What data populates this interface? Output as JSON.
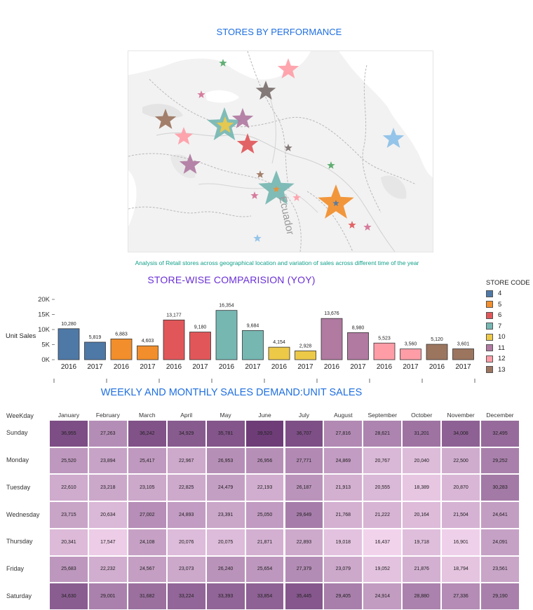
{
  "map": {
    "title": "STORES BY PERFORMANCE",
    "subtitle": "Analysis  of Retail stores across geographical location and variation of sales across different time of the year",
    "place_label": "Ecuador",
    "star_colors": [
      "#55a868",
      "#ff9da7",
      "#79706e",
      "#d37295",
      "#9c755f",
      "#76b7b2",
      "#edc948",
      "#b07aa1",
      "#e15759",
      "#8cc0e8",
      "#f28e2b",
      "#4e79a7"
    ]
  },
  "bar_chart": {
    "title": "STORE-WISE COMPARISION (YOY)",
    "ylabel": "Unit Sales",
    "yticks": [
      "20K",
      "15K",
      "10K",
      "5K",
      "0K"
    ],
    "legend_title": "STORE CODE",
    "legend": [
      {
        "code": "4",
        "color": "#4e79a7"
      },
      {
        "code": "5",
        "color": "#f28e2b"
      },
      {
        "code": "6",
        "color": "#e15759"
      },
      {
        "code": "7",
        "color": "#76b7b2"
      },
      {
        "code": "10",
        "color": "#edc948"
      },
      {
        "code": "11",
        "color": "#b07aa1"
      },
      {
        "code": "12",
        "color": "#ff9da7"
      },
      {
        "code": "13",
        "color": "#9c755f"
      }
    ]
  },
  "heatmap": {
    "title": "WEEKLY AND MONTHLY SALES DEMAND:UNIT SALES",
    "row_header": "WeeKday"
  },
  "chart_data": [
    {
      "type": "bar",
      "title": "STORE-WISE COMPARISION (YOY)",
      "xlabel": "",
      "ylabel": "Unit Sales",
      "ylim": [
        0,
        20000
      ],
      "categories": [
        "2016",
        "2017",
        "2016",
        "2017",
        "2016",
        "2017",
        "2016",
        "2017",
        "2016",
        "2017",
        "2016",
        "2017",
        "2016",
        "2017",
        "2016",
        "2017"
      ],
      "stores": [
        "4",
        "4",
        "5",
        "5",
        "6",
        "6",
        "7",
        "7",
        "10",
        "10",
        "11",
        "11",
        "12",
        "12",
        "13",
        "13"
      ],
      "values": [
        10280,
        5819,
        6883,
        4603,
        13177,
        9180,
        16354,
        9684,
        4154,
        2928,
        13676,
        8980,
        5523,
        3560,
        5120,
        3601
      ],
      "labels": [
        "10,280",
        "5,819",
        "6,883",
        "4,603",
        "13,177",
        "9,180",
        "16,354",
        "9,684",
        "4,154",
        "2,928",
        "13,676",
        "8,980",
        "5,523",
        "3,560",
        "5,120",
        "3,601"
      ]
    },
    {
      "type": "heatmap",
      "title": "WEEKLY AND MONTHLY SALES DEMAND:UNIT SALES",
      "columns": [
        "January",
        "February",
        "March",
        "April",
        "May",
        "June",
        "July",
        "August",
        "September",
        "October",
        "November",
        "December"
      ],
      "rows": [
        "Sunday",
        "Monday",
        "Tuesday",
        "Wednesday",
        "Thursday",
        "Friday",
        "Saturday"
      ],
      "values": [
        [
          36955,
          27263,
          36242,
          34929,
          35781,
          39520,
          36707,
          27816,
          28621,
          31201,
          34008,
          32495
        ],
        [
          25520,
          23894,
          25417,
          22967,
          26953,
          26956,
          27771,
          24869,
          20767,
          20040,
          22500,
          29252
        ],
        [
          22610,
          23218,
          23105,
          22825,
          24479,
          22193,
          26187,
          21913,
          20555,
          18389,
          20870,
          30283
        ],
        [
          23715,
          20634,
          27002,
          24893,
          23391,
          25050,
          29649,
          21768,
          21222,
          20164,
          21504,
          24641
        ],
        [
          20341,
          17547,
          24108,
          20076,
          20075,
          21871,
          22893,
          19018,
          16437,
          19718,
          16901,
          24091
        ],
        [
          25683,
          22232,
          24567,
          23073,
          26240,
          25654,
          27379,
          23079,
          19052,
          21876,
          18794,
          23561
        ],
        [
          34630,
          29001,
          31682,
          33224,
          33393,
          33854,
          35445,
          29405,
          24914,
          28880,
          27336,
          29190
        ]
      ],
      "labels": [
        [
          "36,955",
          "27,263",
          "36,242",
          "34,929",
          "35,781",
          "39,520",
          "36,707",
          "27,816",
          "28,621",
          "31,201",
          "34,008",
          "32,495"
        ],
        [
          "25,520",
          "23,894",
          "25,417",
          "22,967",
          "26,953",
          "26,956",
          "27,771",
          "24,869",
          "20,767",
          "20,040",
          "22,500",
          "29,252"
        ],
        [
          "22,610",
          "23,218",
          "23,105",
          "22,825",
          "24,479",
          "22,193",
          "26,187",
          "21,913",
          "20,555",
          "18,389",
          "20,870",
          "30,283"
        ],
        [
          "23,715",
          "20,634",
          "27,002",
          "24,893",
          "23,391",
          "25,050",
          "29,649",
          "21,768",
          "21,222",
          "20,164",
          "21,504",
          "24,641"
        ],
        [
          "20,341",
          "17,547",
          "24,108",
          "20,076",
          "20,075",
          "21,871",
          "22,893",
          "19,018",
          "16,437",
          "19,718",
          "16,901",
          "24,091"
        ],
        [
          "25,683",
          "22,232",
          "24,567",
          "23,073",
          "26,240",
          "25,654",
          "27,379",
          "23,079",
          "19,052",
          "21,876",
          "18,794",
          "23,561"
        ],
        [
          "34,630",
          "29,001",
          "31,682",
          "33,224",
          "33,393",
          "33,854",
          "35,445",
          "29,405",
          "24,914",
          "28,880",
          "27,336",
          "29,190"
        ]
      ],
      "color_low": "#f2d3ec",
      "color_high": "#6e3d78"
    }
  ]
}
